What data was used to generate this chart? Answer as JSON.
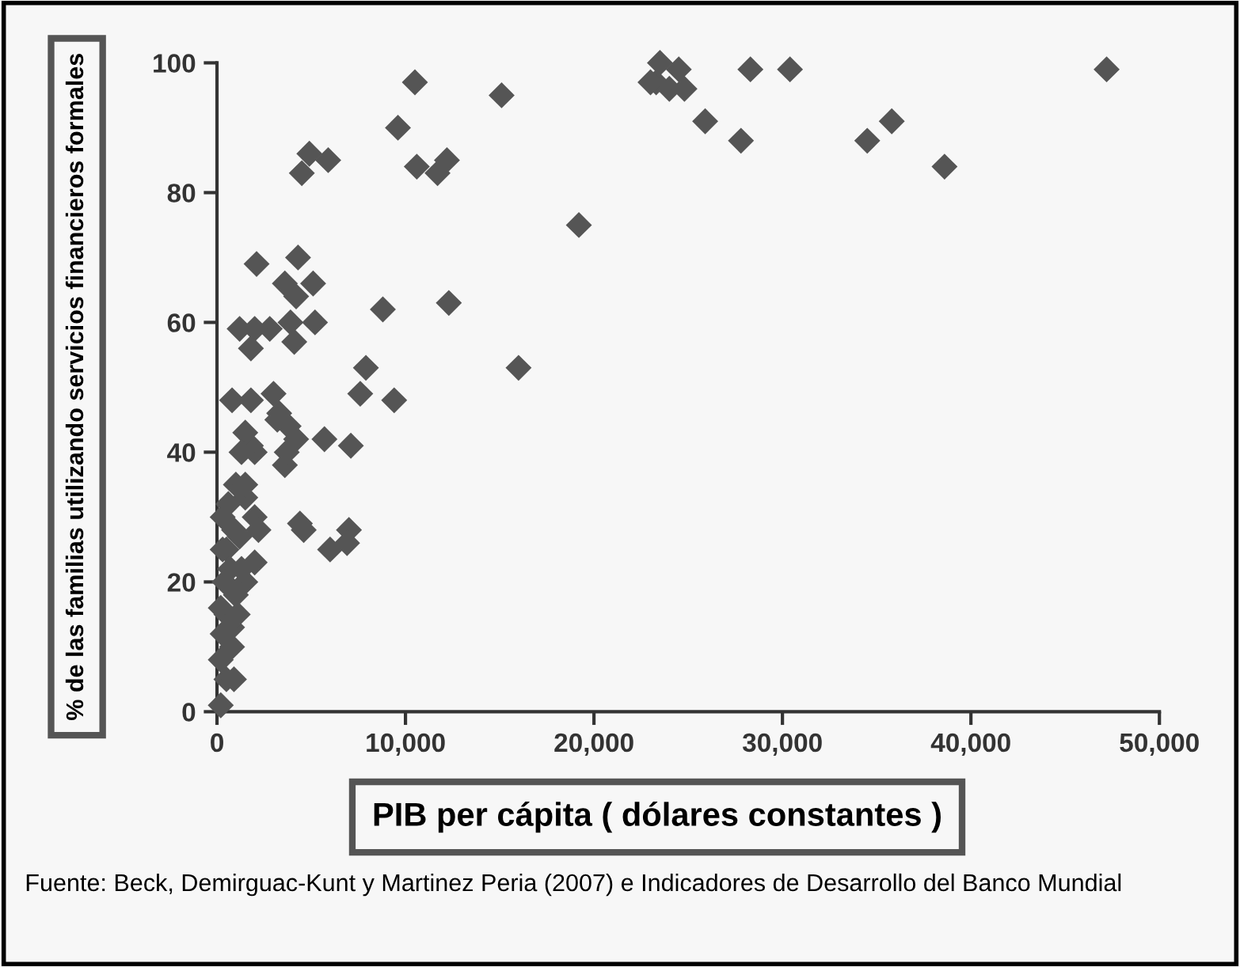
{
  "chart_data": {
    "type": "scatter",
    "xlabel": "PIB per cápita ( dólares constantes )",
    "ylabel": "% de las familias utilizando servicios financieros formales",
    "annotations": [
      "Fuente: Beck, Demirguac-Kunt y Martinez Peria (2007) e Indicadores de Desarrollo del Banco Mundial"
    ],
    "xlim": [
      0,
      50000
    ],
    "ylim": [
      0,
      100
    ],
    "xticks": [
      {
        "value": 0,
        "label": "0"
      },
      {
        "value": 10000,
        "label": "10,000"
      },
      {
        "value": 20000,
        "label": "20,000"
      },
      {
        "value": 30000,
        "label": "30,000"
      },
      {
        "value": 40000,
        "label": "40,000"
      },
      {
        "value": 50000,
        "label": "50,000"
      }
    ],
    "yticks": [
      0,
      20,
      40,
      60,
      80,
      100
    ],
    "grid": false,
    "marker": "diamond",
    "series": [
      {
        "color": "#555555",
        "x": [
          23300,
          23500,
          24000,
          24500,
          24800,
          23000,
          25900,
          27800,
          28300,
          30400,
          34500,
          35800,
          38600,
          47200,
          19200,
          16000,
          15100,
          12300,
          12200,
          11700,
          10600,
          10500,
          9600,
          9400,
          8800,
          7900,
          7600,
          7100,
          7000,
          6900,
          6000,
          5900,
          5700,
          4900,
          5100,
          5200,
          4500,
          4300,
          4200,
          4100,
          3900,
          3600,
          4200,
          3800,
          4400,
          4600,
          3600,
          3700,
          3300,
          3000,
          3200,
          2800,
          2000,
          2100,
          1800,
          1200,
          800,
          1800,
          2000,
          1800,
          1500,
          1300,
          2000,
          2200,
          1500,
          1000,
          2000,
          1500,
          1000,
          500,
          300,
          800,
          500,
          200,
          900,
          500,
          300,
          700,
          1200,
          600,
          400,
          200,
          800,
          1100,
          1300,
          200,
          1500,
          900,
          300
        ],
        "values": [
          97,
          100,
          96,
          99,
          96,
          97,
          91,
          88,
          99,
          99,
          88,
          91,
          84,
          99,
          75,
          53,
          95,
          63,
          85,
          83,
          84,
          97,
          90,
          48,
          62,
          53,
          49,
          41,
          28,
          26,
          25,
          85,
          42,
          86,
          66,
          60,
          83,
          70,
          64,
          57,
          60,
          66,
          42,
          44,
          29,
          28,
          38,
          40,
          46,
          49,
          45,
          59,
          59,
          69,
          56,
          59,
          48,
          48,
          40,
          41,
          43,
          40,
          30,
          28,
          33,
          35,
          23,
          20,
          18,
          15,
          12,
          10,
          5,
          1,
          5,
          25,
          30,
          22,
          27,
          32,
          20,
          16,
          13,
          15,
          22,
          8,
          35,
          28,
          25
        ]
      }
    ]
  }
}
